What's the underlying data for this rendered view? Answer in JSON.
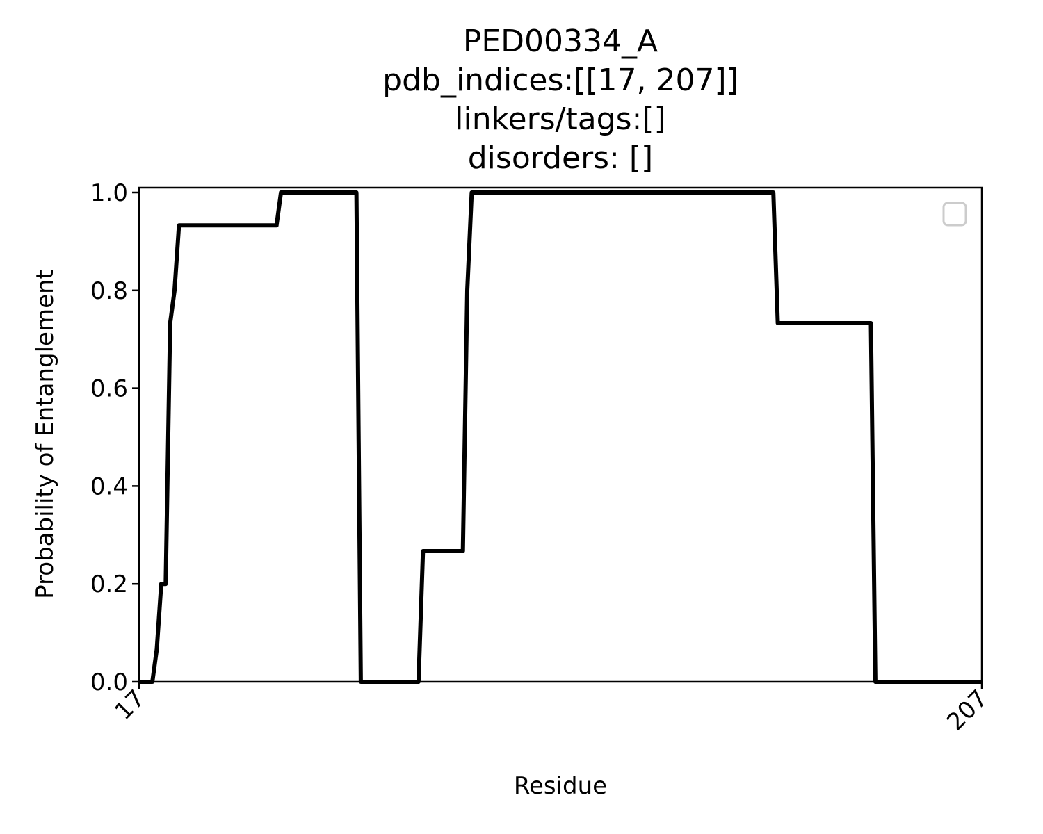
{
  "chart_data": {
    "type": "line",
    "title_lines": [
      "PED00334_A",
      "pdb_indices:[[17, 207]]",
      "linkers/tags:[]",
      "disorders: []"
    ],
    "xlabel": "Residue",
    "ylabel": "Probability of Entanglement",
    "xlim": [
      17,
      207
    ],
    "ylim": [
      0,
      1
    ],
    "x_ticks": [
      17,
      207
    ],
    "x_tick_labels": [
      "17",
      "207"
    ],
    "y_ticks": [
      0,
      0.2,
      0.4,
      0.6,
      0.8,
      1.0
    ],
    "y_tick_labels": [
      "0.0",
      "0.2",
      "0.4",
      "0.6",
      "0.8",
      "1.0"
    ],
    "grid": false,
    "legend": {
      "placement": "upper right",
      "entries": []
    },
    "series": [
      {
        "color": "#000000",
        "x": [
          17,
          20,
          21,
          22,
          23,
          24,
          25,
          26,
          30,
          40,
          48,
          49,
          50,
          66,
          67,
          80,
          81,
          90,
          91,
          92,
          160,
          161,
          182,
          183,
          207
        ],
        "y": [
          0,
          0,
          0.067,
          0.2,
          0.2,
          0.733,
          0.8,
          0.933,
          0.933,
          0.933,
          0.933,
          1,
          1,
          1,
          0,
          0,
          0.267,
          0.267,
          0.8,
          1,
          1,
          0.733,
          0.733,
          0,
          0
        ]
      }
    ]
  }
}
